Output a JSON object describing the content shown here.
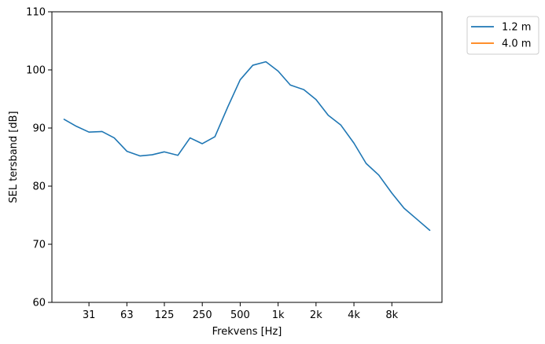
{
  "chart_data": {
    "type": "line",
    "xlabel": "Frekvens [Hz]",
    "ylabel": "SEL tersband [dB]",
    "ylim": [
      60,
      110
    ],
    "x_scale": "log",
    "xlim": [
      16,
      20000
    ],
    "x_ticks": [
      {
        "value": 31.5,
        "label": "31"
      },
      {
        "value": 63,
        "label": "63"
      },
      {
        "value": 125,
        "label": "125"
      },
      {
        "value": 250,
        "label": "250"
      },
      {
        "value": 500,
        "label": "500"
      },
      {
        "value": 1000,
        "label": "1k"
      },
      {
        "value": 2000,
        "label": "2k"
      },
      {
        "value": 4000,
        "label": "4k"
      },
      {
        "value": 8000,
        "label": "8k"
      }
    ],
    "y_ticks": [
      60,
      70,
      80,
      90,
      100,
      110
    ],
    "grid": false,
    "legend_position": "outside-top-right",
    "series": [
      {
        "name": "1.2 m",
        "color": "#1f77b4",
        "x": [
          20,
          25,
          31.5,
          40,
          50,
          63,
          80,
          100,
          125,
          160,
          200,
          250,
          315,
          400,
          500,
          630,
          800,
          1000,
          1250,
          1600,
          2000,
          2500,
          3150,
          4000,
          5000,
          6300,
          8000,
          10000,
          12500,
          16000
        ],
        "values": [
          91.5,
          90.3,
          89.3,
          89.4,
          88.3,
          86.0,
          85.2,
          85.4,
          85.9,
          85.3,
          88.3,
          87.3,
          88.5,
          93.7,
          98.3,
          100.8,
          101.4,
          99.8,
          97.4,
          96.6,
          94.9,
          92.2,
          90.5,
          87.4,
          83.9,
          81.9,
          78.8,
          76.2,
          74.4,
          72.4
        ]
      },
      {
        "name": "4.0 m",
        "color": "#ff7f0e",
        "x": [],
        "values": []
      }
    ]
  }
}
